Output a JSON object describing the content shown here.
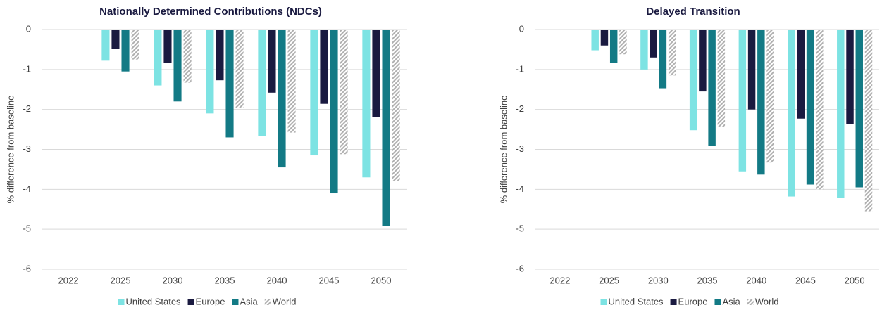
{
  "chart_data": [
    {
      "type": "bar",
      "title": "Nationally Determined Contributions (NDCs)",
      "y_label": "% difference from baseline",
      "categories": [
        "2022",
        "2025",
        "2030",
        "2035",
        "2040",
        "2045",
        "2050"
      ],
      "series": [
        {
          "name": "United States",
          "color": "#7de3e3",
          "values": [
            0,
            -0.78,
            -1.4,
            -2.1,
            -2.67,
            -3.15,
            -3.7
          ]
        },
        {
          "name": "Europe",
          "color": "#1a1a40",
          "values": [
            0,
            -0.48,
            -0.83,
            -1.27,
            -1.58,
            -1.86,
            -2.19
          ]
        },
        {
          "name": "Asia",
          "color": "#137a85",
          "values": [
            0,
            -1.05,
            -1.8,
            -2.7,
            -3.45,
            -4.1,
            -4.92
          ]
        },
        {
          "name": "World",
          "color": "#b0b0b0",
          "hatch": true,
          "values": [
            0,
            -0.75,
            -1.33,
            -1.97,
            -2.58,
            -3.12,
            -3.8
          ]
        }
      ],
      "ylim": [
        -6,
        0
      ],
      "yticks": [
        -6,
        -5,
        -4,
        -3,
        -2,
        -1,
        0
      ],
      "grid": true,
      "legend": "bottom"
    },
    {
      "type": "bar",
      "title": "Delayed Transition",
      "y_label": "% difference from baseline",
      "categories": [
        "2022",
        "2025",
        "2030",
        "2035",
        "2040",
        "2045",
        "2050"
      ],
      "series": [
        {
          "name": "United States",
          "color": "#7de3e3",
          "values": [
            0,
            -0.52,
            -1.0,
            -2.52,
            -3.55,
            -4.18,
            -4.22
          ]
        },
        {
          "name": "Europe",
          "color": "#1a1a40",
          "values": [
            0,
            -0.4,
            -0.7,
            -1.55,
            -2.0,
            -2.23,
            -2.37
          ]
        },
        {
          "name": "Asia",
          "color": "#137a85",
          "values": [
            0,
            -0.83,
            -1.47,
            -2.92,
            -3.63,
            -3.88,
            -3.95
          ]
        },
        {
          "name": "World",
          "color": "#b0b0b0",
          "hatch": true,
          "values": [
            0,
            -0.62,
            -1.15,
            -2.43,
            -3.33,
            -4.0,
            -4.55
          ]
        }
      ],
      "ylim": [
        -6,
        0
      ],
      "yticks": [
        -6,
        -5,
        -4,
        -3,
        -2,
        -1,
        0
      ],
      "grid": true,
      "legend": "bottom"
    }
  ]
}
